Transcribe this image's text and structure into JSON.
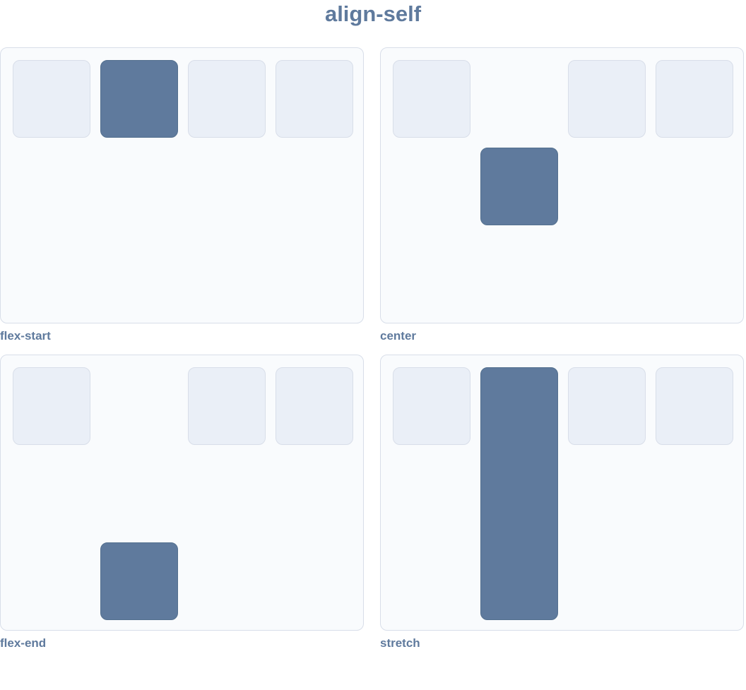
{
  "title": "align-self",
  "colors": {
    "accent": "#5f7a9d",
    "item": "#eaeff7",
    "border": "#d8dee9",
    "panel": "#f9fbfd"
  },
  "panels": [
    {
      "label": "flex-start",
      "align": "flex-start",
      "active_index": 1,
      "item_count": 4
    },
    {
      "label": "center",
      "align": "center",
      "active_index": 1,
      "item_count": 4
    },
    {
      "label": "flex-end",
      "align": "flex-end",
      "active_index": 1,
      "item_count": 4
    },
    {
      "label": "stretch",
      "align": "stretch",
      "active_index": 1,
      "item_count": 4
    }
  ]
}
